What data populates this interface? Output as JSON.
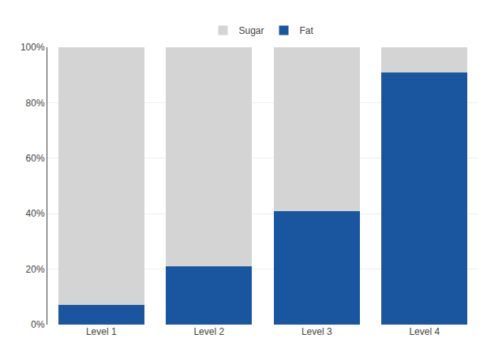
{
  "chart_data": {
    "type": "bar",
    "stacked": true,
    "categories": [
      "Level 1",
      "Level 2",
      "Level 3",
      "Level 4"
    ],
    "series": [
      {
        "name": "Fat",
        "color": "#1A56A0",
        "values": [
          0.07,
          0.21,
          0.41,
          0.91
        ]
      },
      {
        "name": "Sugar",
        "color": "#D4D4D4",
        "values": [
          0.93,
          0.79,
          0.59,
          0.09
        ]
      }
    ],
    "ylim": [
      0,
      1.0
    ],
    "yticks": [
      {
        "value": 0.0,
        "label": "0%"
      },
      {
        "value": 0.2,
        "label": "20%"
      },
      {
        "value": 0.4,
        "label": "40%"
      },
      {
        "value": 0.6,
        "label": "60%"
      },
      {
        "value": 0.8,
        "label": "80%"
      },
      {
        "value": 1.0,
        "label": "100%"
      }
    ],
    "grid": true,
    "legend": "top"
  }
}
